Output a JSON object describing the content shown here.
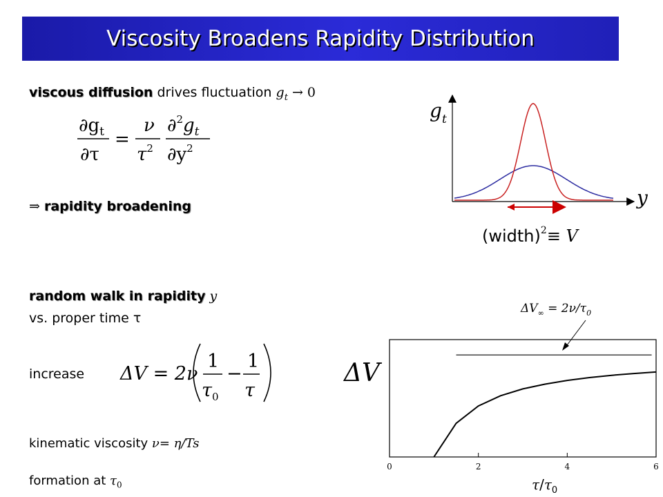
{
  "title": "Viscosity Broadens Rapidity Distribution",
  "line1": {
    "bold": "viscous diffusion",
    "rest": "drives fluctuation",
    "math": "g",
    "sub": "t",
    "tail": "→ 0"
  },
  "equation1": {
    "lhs_num": "∂g",
    "lhs_num_sub": "t",
    "lhs_den": "∂τ",
    "eq": "=",
    "coef_num": "ν",
    "coef_den": "τ",
    "coef_den_sup": "2",
    "rhs_num": "∂",
    "rhs_num_sup": "2",
    "rhs_num_g": "g",
    "rhs_num_sub": "t",
    "rhs_den": "∂y",
    "rhs_den_sup": "2"
  },
  "broadening": {
    "arrow": "⇒",
    "text": "rapidity broadening"
  },
  "gauss_plot": {
    "ylabel": "g",
    "ylabel_sub": "t",
    "xlabel": "y",
    "width_label": "(width)",
    "width_sup": "2",
    "width_rest": "≡ V"
  },
  "random_walk": {
    "bold": "random walk in rapidity",
    "math": "y",
    "line2": "vs. proper time τ"
  },
  "increase": {
    "label": "increase",
    "lhs": "ΔV = 2ν",
    "num1": "1",
    "den1": "τ",
    "den1_sub": "0",
    "minus": "−",
    "num2": "1",
    "den2": "τ"
  },
  "kinematic": {
    "label": "kinematic viscosity",
    "math": "ν= η/Ts"
  },
  "formation": {
    "label": "formation at",
    "math": "τ",
    "sub": "0"
  },
  "asymptote": {
    "label": "ΔV",
    "inf": "∞",
    "rest": " = 2ν/τ",
    "sub": "0"
  },
  "chart_data": {
    "type": "line",
    "title": "",
    "ylabel": "ΔV",
    "xlabel": "τ/τ0",
    "xlim": [
      0,
      6
    ],
    "xticks": [
      "0",
      "2",
      "4",
      "6"
    ],
    "series": [
      {
        "x": [
          1.0,
          1.5,
          2.0,
          2.5,
          3.0,
          3.5,
          4.0,
          4.5,
          5.0,
          5.5,
          6.0
        ],
        "y": [
          0.0,
          0.33,
          0.5,
          0.6,
          0.667,
          0.714,
          0.75,
          0.778,
          0.8,
          0.818,
          0.833
        ]
      }
    ],
    "asymptote_y": 1.0
  }
}
